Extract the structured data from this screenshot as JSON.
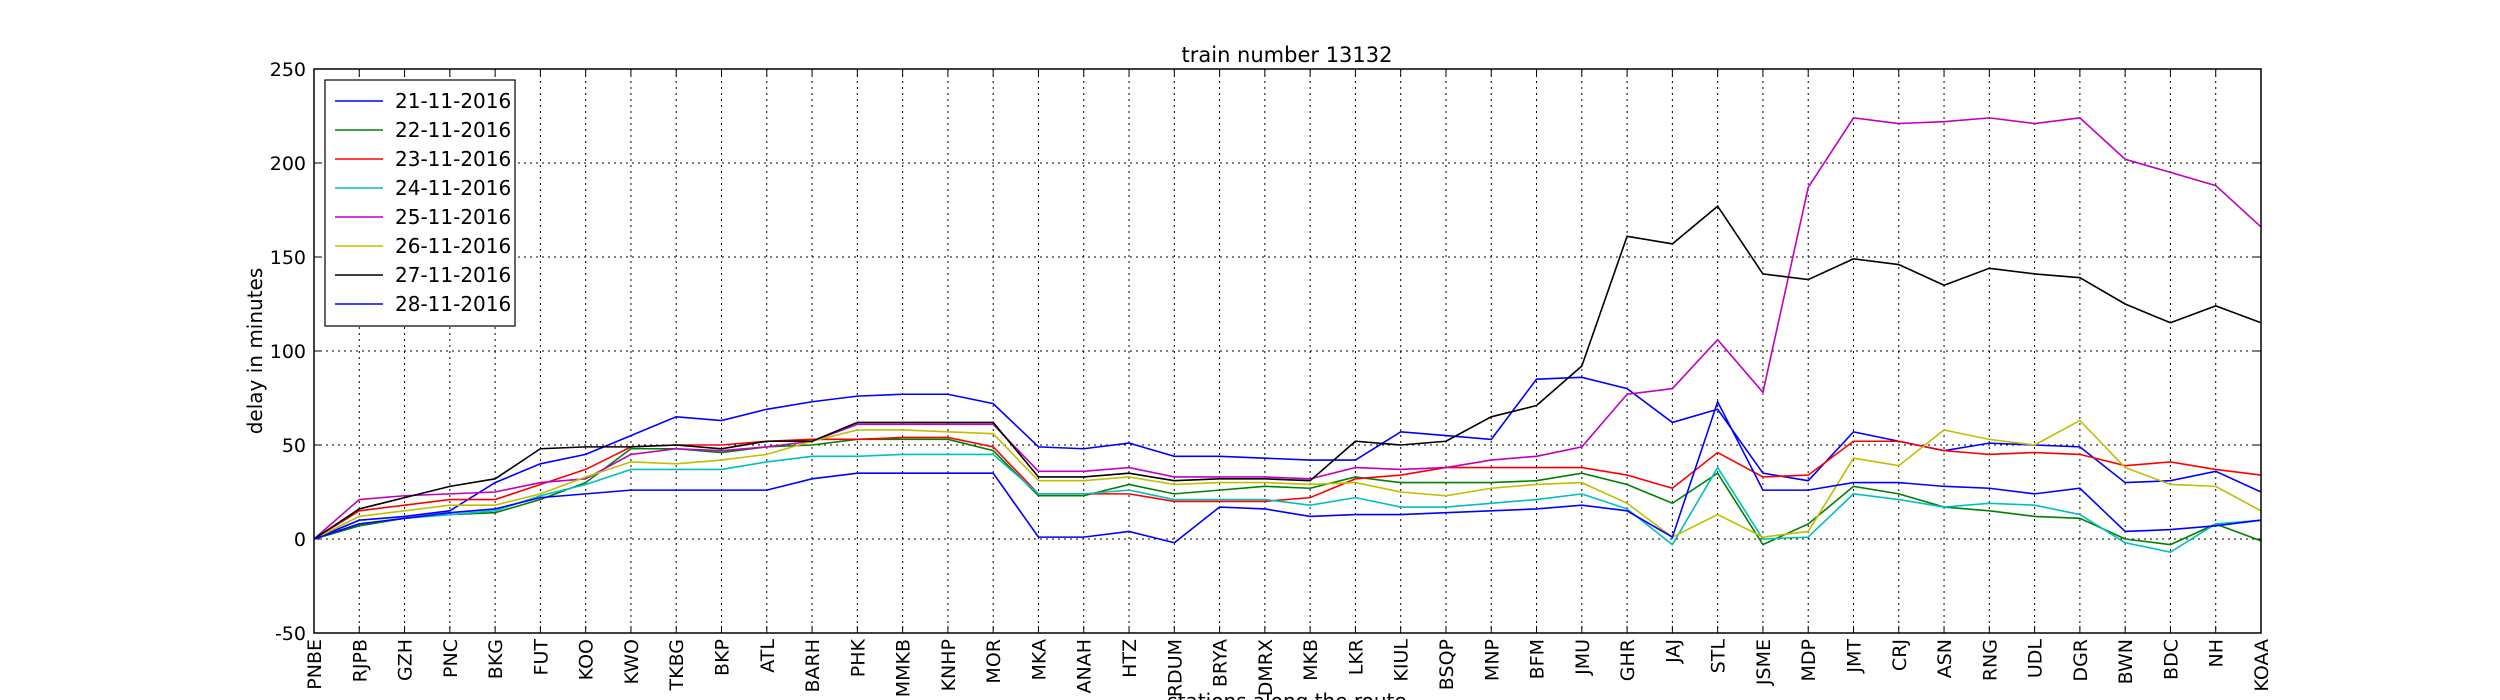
{
  "chart_data": {
    "type": "line",
    "title": "train number 13132",
    "x_label": "stations along the route",
    "y_label": "delay in minutes",
    "categories": [
      "PNBE",
      "RJPB",
      "GZH",
      "PNC",
      "BKG",
      "FUT",
      "KOO",
      "KWO",
      "TKBG",
      "BKP",
      "ATL",
      "BARH",
      "PHK",
      "MMKB",
      "KNHP",
      "MOR",
      "MKA",
      "ANAH",
      "HTZ",
      "RDUM",
      "BRYA",
      "DMRX",
      "MKB",
      "LKR",
      "KIUL",
      "BSQP",
      "MNP",
      "BFM",
      "JMU",
      "GHR",
      "JAJ",
      "STL",
      "JSME",
      "MDP",
      "JMT",
      "CRJ",
      "ASN",
      "RNG",
      "UDL",
      "DGR",
      "BWN",
      "BDC",
      "NH",
      "KOAA"
    ],
    "ylim": [
      -50,
      250
    ],
    "yticks": [
      -50,
      0,
      50,
      100,
      150,
      200,
      250
    ],
    "grid": true,
    "legend": "upper left",
    "series": [
      {
        "name": "21-11-2016",
        "color": "#0000ff",
        "values": [
          0,
          10,
          12,
          15,
          30,
          40,
          45,
          55,
          65,
          63,
          69,
          73,
          76,
          77,
          77,
          72,
          49,
          48,
          51,
          44,
          44,
          43,
          42,
          42,
          57,
          55,
          53,
          85,
          86,
          80,
          62,
          69,
          35,
          31,
          57,
          52,
          47,
          51,
          50,
          49,
          30,
          31,
          36,
          25
        ]
      },
      {
        "name": "22-11-2016",
        "color": "#008000",
        "values": [
          0,
          7,
          11,
          13,
          14,
          21,
          30,
          48,
          48,
          46,
          49,
          50,
          53,
          53,
          53,
          47,
          23,
          23,
          29,
          24,
          26,
          28,
          27,
          33,
          30,
          30,
          30,
          31,
          35,
          29,
          19,
          35,
          -3,
          8,
          28,
          24,
          17,
          15,
          12,
          11,
          0,
          -3,
          8,
          -1
        ]
      },
      {
        "name": "23-11-2016",
        "color": "#ff0000",
        "values": [
          0,
          15,
          18,
          21,
          21,
          29,
          37,
          49,
          50,
          50,
          52,
          53,
          53,
          54,
          54,
          49,
          24,
          24,
          24,
          20,
          20,
          20,
          22,
          32,
          34,
          38,
          38,
          38,
          38,
          34,
          27,
          46,
          33,
          34,
          52,
          52,
          47,
          45,
          46,
          45,
          39,
          41,
          37,
          34
        ]
      },
      {
        "name": "24-11-2016",
        "color": "#00bfbf",
        "values": [
          0,
          8,
          11,
          13,
          15,
          23,
          29,
          37,
          37,
          37,
          41,
          44,
          44,
          45,
          45,
          45,
          24,
          24,
          26,
          21,
          21,
          21,
          18,
          22,
          17,
          17,
          19,
          21,
          24,
          16,
          -3,
          38,
          0,
          1,
          24,
          21,
          17,
          19,
          18,
          13,
          -2,
          -7,
          8,
          10
        ]
      },
      {
        "name": "25-11-2016",
        "color": "#bf00bf",
        "values": [
          0,
          21,
          23,
          24,
          25,
          30,
          32,
          45,
          48,
          47,
          49,
          52,
          61,
          61,
          61,
          61,
          36,
          36,
          38,
          33,
          33,
          33,
          32,
          38,
          37,
          38,
          42,
          44,
          49,
          77,
          80,
          106,
          78,
          187,
          224,
          221,
          222,
          224,
          221,
          224,
          202,
          195,
          188,
          166
        ]
      },
      {
        "name": "26-11-2016",
        "color": "#bfbf00",
        "values": [
          0,
          12,
          15,
          18,
          18,
          24,
          33,
          41,
          40,
          42,
          45,
          52,
          58,
          58,
          57,
          56,
          31,
          31,
          33,
          29,
          30,
          30,
          29,
          30,
          25,
          23,
          27,
          29,
          30,
          19,
          1,
          13,
          1,
          4,
          43,
          39,
          58,
          53,
          50,
          63,
          38,
          29,
          28,
          15
        ]
      },
      {
        "name": "27-11-2016",
        "color": "#000000",
        "values": [
          0,
          16,
          22,
          28,
          32,
          48,
          49,
          49,
          50,
          48,
          52,
          52,
          62,
          62,
          62,
          62,
          33,
          33,
          35,
          31,
          32,
          32,
          31,
          52,
          50,
          52,
          65,
          71,
          92,
          161,
          157,
          177,
          141,
          138,
          149,
          146,
          135,
          144,
          141,
          139,
          125,
          115,
          124,
          115
        ]
      },
      {
        "name": "28-11-2016",
        "color": "#0000ff",
        "values": [
          0,
          8,
          11,
          14,
          16,
          22,
          24,
          26,
          26,
          26,
          26,
          32,
          35,
          35,
          35,
          35,
          1,
          1,
          4,
          -2,
          17,
          16,
          12,
          13,
          13,
          14,
          15,
          16,
          18,
          15,
          1,
          73,
          26,
          26,
          30,
          30,
          28,
          27,
          24,
          27,
          4,
          5,
          7,
          10
        ]
      }
    ]
  }
}
